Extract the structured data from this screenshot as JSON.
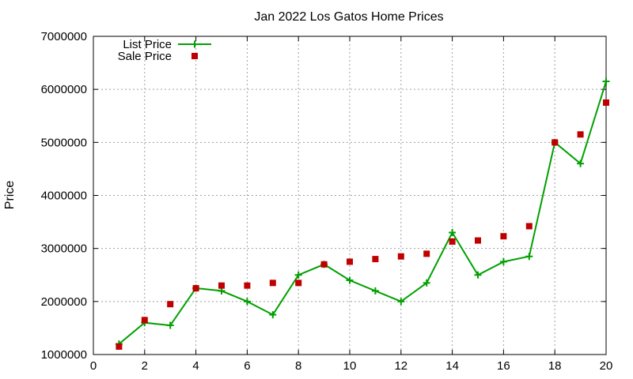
{
  "chart_data": {
    "type": "line",
    "title": "Jan 2022 Los Gatos Home Prices",
    "xlabel": "",
    "ylabel": "Price",
    "xlim": [
      0,
      20
    ],
    "ylim": [
      1000000,
      7000000
    ],
    "xticks": [
      "0",
      "2",
      "4",
      "6",
      "8",
      "10",
      "12",
      "14",
      "16",
      "18",
      "20"
    ],
    "yticks": [
      "1000000",
      "2000000",
      "3000000",
      "4000000",
      "5000000",
      "6000000",
      "7000000"
    ],
    "grid": true,
    "legend_position": "top-left",
    "x": [
      1,
      2,
      3,
      4,
      5,
      6,
      7,
      8,
      9,
      10,
      11,
      12,
      13,
      14,
      15,
      16,
      17,
      18,
      19,
      20
    ],
    "series": [
      {
        "name": "List Price",
        "style": "line+cross",
        "color": "#00a000",
        "values": [
          1200000,
          1600000,
          1550000,
          2250000,
          2200000,
          2000000,
          1750000,
          2500000,
          2700000,
          2400000,
          2200000,
          2000000,
          2350000,
          3300000,
          2500000,
          2750000,
          2850000,
          5000000,
          4600000,
          6150000
        ]
      },
      {
        "name": "Sale Price",
        "style": "square",
        "color": "#c00000",
        "values": [
          1150000,
          1650000,
          1950000,
          2250000,
          2300000,
          2300000,
          2350000,
          2350000,
          2700000,
          2750000,
          2800000,
          2850000,
          2900000,
          3130000,
          3150000,
          3230000,
          3420000,
          5000000,
          5150000,
          5750000
        ]
      }
    ]
  }
}
